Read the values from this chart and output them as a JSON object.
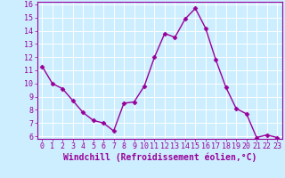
{
  "x": [
    0,
    1,
    2,
    3,
    4,
    5,
    6,
    7,
    8,
    9,
    10,
    11,
    12,
    13,
    14,
    15,
    16,
    17,
    18,
    19,
    20,
    21,
    22,
    23
  ],
  "y": [
    11.3,
    10.0,
    9.6,
    8.7,
    7.8,
    7.2,
    7.0,
    6.4,
    8.5,
    8.6,
    9.8,
    12.0,
    13.8,
    13.5,
    14.9,
    15.7,
    14.2,
    11.8,
    9.7,
    8.1,
    7.7,
    5.9,
    6.1,
    5.9
  ],
  "line_color": "#990099",
  "marker": "D",
  "marker_size": 2.5,
  "bg_color": "#cceeff",
  "grid_color": "#ffffff",
  "xlabel": "Windchill (Refroidissement éolien,°C)",
  "xlabel_color": "#990099",
  "tick_color": "#990099",
  "ylim_min": 5.8,
  "ylim_max": 16.2,
  "yticks": [
    6,
    7,
    8,
    9,
    10,
    11,
    12,
    13,
    14,
    15,
    16
  ],
  "xticks": [
    0,
    1,
    2,
    3,
    4,
    5,
    6,
    7,
    8,
    9,
    10,
    11,
    12,
    13,
    14,
    15,
    16,
    17,
    18,
    19,
    20,
    21,
    22,
    23
  ],
  "tick_fontsize": 6,
  "xlabel_fontsize": 7,
  "line_width": 1.0
}
